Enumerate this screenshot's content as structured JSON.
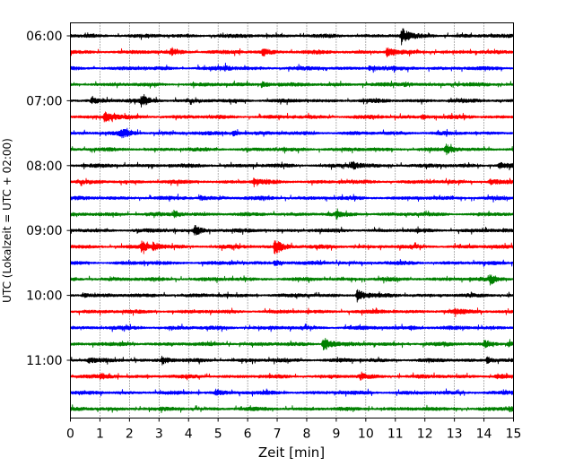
{
  "chart_data": {
    "type": "line",
    "title": "",
    "xlabel": "Zeit  [min]",
    "ylabel": "UTC (Lokalzeit = UTC + 02:00)",
    "xlim": [
      0,
      15
    ],
    "x_ticks": [
      "0",
      "1",
      "2",
      "3",
      "4",
      "5",
      "6",
      "7",
      "8",
      "9",
      "10",
      "11",
      "12",
      "13",
      "14",
      "15"
    ],
    "y_ticks": [
      "06:00",
      "07:00",
      "08:00",
      "09:00",
      "10:00",
      "11:00"
    ],
    "grid": "vertical dotted",
    "legend": "none",
    "trace_colors": [
      "#000000",
      "#ff0000",
      "#0000ff",
      "#008000"
    ],
    "traces": [
      {
        "start": "06:00",
        "color": "#000000",
        "events": [
          [
            11.2,
            1.0
          ]
        ]
      },
      {
        "start": "06:15",
        "color": "#ff0000",
        "events": [
          [
            6.5,
            0.45
          ],
          [
            10.7,
            0.55
          ],
          [
            3.4,
            0.3
          ]
        ]
      },
      {
        "start": "06:30",
        "color": "#0000ff",
        "events": [
          [
            5.2,
            0.25
          ],
          [
            10.1,
            0.25
          ]
        ]
      },
      {
        "start": "06:45",
        "color": "#008000",
        "events": [
          [
            6.5,
            0.3
          ],
          [
            11.3,
            0.25
          ]
        ]
      },
      {
        "start": "07:00",
        "color": "#000000",
        "events": [
          [
            2.4,
            0.7
          ],
          [
            0.7,
            0.3
          ]
        ]
      },
      {
        "start": "07:15",
        "color": "#ff0000",
        "events": [
          [
            1.15,
            0.75
          ],
          [
            11.9,
            0.25
          ]
        ]
      },
      {
        "start": "07:30",
        "color": "#0000ff",
        "events": [
          [
            1.7,
            0.55
          ],
          [
            5.5,
            0.3
          ]
        ]
      },
      {
        "start": "07:45",
        "color": "#008000",
        "events": [
          [
            12.7,
            0.6
          ]
        ]
      },
      {
        "start": "08:00",
        "color": "#000000",
        "events": [
          [
            9.5,
            0.5
          ],
          [
            14.5,
            0.35
          ]
        ]
      },
      {
        "start": "08:15",
        "color": "#ff0000",
        "events": [
          [
            6.2,
            0.3
          ],
          [
            14.2,
            0.3
          ]
        ]
      },
      {
        "start": "08:30",
        "color": "#0000ff",
        "events": [
          [
            4.4,
            0.2
          ]
        ]
      },
      {
        "start": "08:45",
        "color": "#008000",
        "events": [
          [
            3.5,
            0.35
          ],
          [
            9.0,
            0.3
          ]
        ]
      },
      {
        "start": "09:00",
        "color": "#000000",
        "events": [
          [
            4.2,
            0.55
          ]
        ]
      },
      {
        "start": "09:15",
        "color": "#ff0000",
        "events": [
          [
            2.4,
            0.55
          ],
          [
            2.8,
            0.4
          ],
          [
            6.9,
            1.0
          ]
        ]
      },
      {
        "start": "09:30",
        "color": "#0000ff",
        "events": [
          [
            6.9,
            0.3
          ]
        ]
      },
      {
        "start": "09:45",
        "color": "#008000",
        "events": [
          [
            14.2,
            0.55
          ]
        ]
      },
      {
        "start": "10:00",
        "color": "#000000",
        "events": [
          [
            9.7,
            0.85
          ],
          [
            0.4,
            0.25
          ]
        ]
      },
      {
        "start": "10:15",
        "color": "#ff0000",
        "events": [
          [
            13.0,
            0.2
          ]
        ]
      },
      {
        "start": "10:30",
        "color": "#0000ff",
        "events": [
          [
            11.5,
            0.2
          ]
        ]
      },
      {
        "start": "10:45",
        "color": "#008000",
        "events": [
          [
            8.55,
            1.0
          ],
          [
            14.0,
            0.35
          ],
          [
            14.8,
            0.3
          ]
        ]
      },
      {
        "start": "11:00",
        "color": "#000000",
        "events": [
          [
            3.1,
            0.45
          ],
          [
            0.6,
            0.25
          ],
          [
            14.1,
            0.4
          ]
        ]
      },
      {
        "start": "11:15",
        "color": "#ff0000",
        "events": [
          [
            1.0,
            0.3
          ],
          [
            9.8,
            0.3
          ],
          [
            14.4,
            0.25
          ]
        ]
      },
      {
        "start": "11:30",
        "color": "#0000ff",
        "events": [
          [
            4.9,
            0.35
          ]
        ]
      },
      {
        "start": "11:45",
        "color": "#008000",
        "events": [
          [
            14.85,
            0.3
          ]
        ]
      }
    ]
  }
}
